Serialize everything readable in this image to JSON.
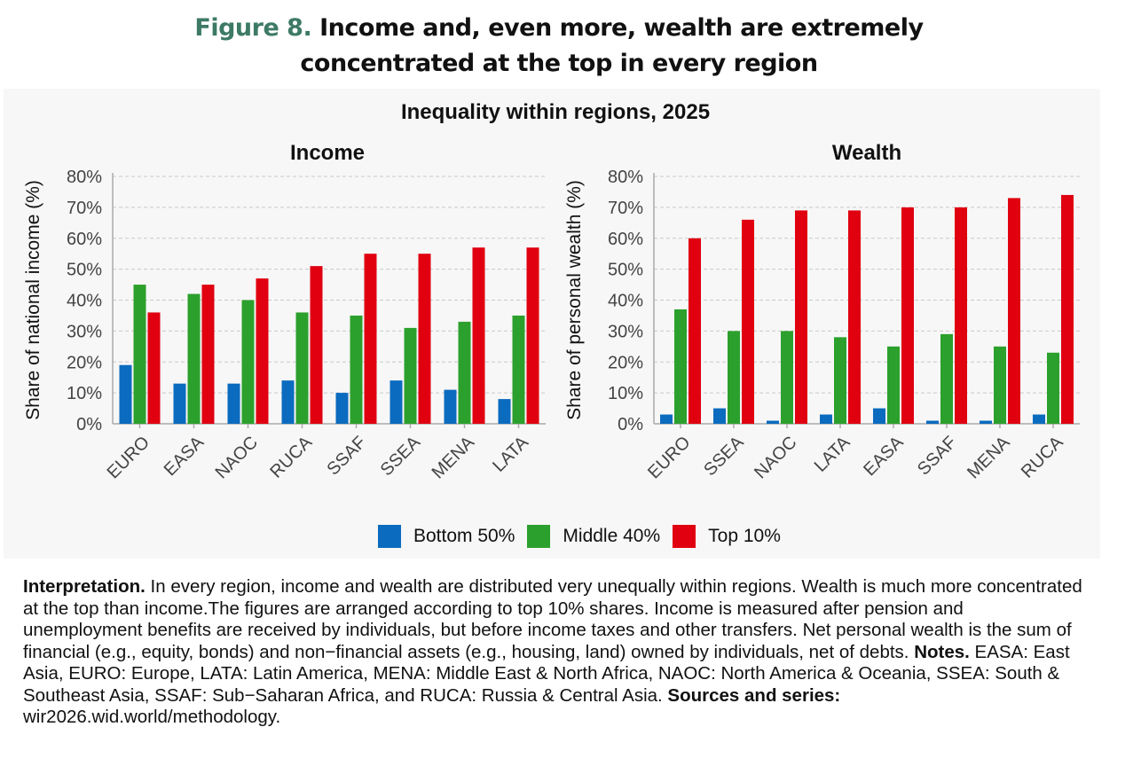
{
  "figure": {
    "number": "Figure 8.",
    "title_line1": "Income and, even more, wealth are extremely",
    "title_line2": "concentrated at the top in every region"
  },
  "panel_title": "Inequality within regions, 2025",
  "colors": {
    "bottom50": "#0b6bbf",
    "middle40": "#2ca02c",
    "top10": "#e00010",
    "heading_accent": "#3d7a65"
  },
  "legend": [
    {
      "label": "Bottom 50%",
      "color": "#0b6bbf"
    },
    {
      "label": "Middle 40%",
      "color": "#2ca02c"
    },
    {
      "label": "Top 10%",
      "color": "#e00010"
    }
  ],
  "chart_data": [
    {
      "type": "bar",
      "title": "Income",
      "ylabel": "Share of national income (%)",
      "xlabel": "",
      "ylim": [
        0,
        80
      ],
      "yticks": [
        "0%",
        "10%",
        "20%",
        "30%",
        "40%",
        "50%",
        "60%",
        "70%",
        "80%"
      ],
      "grid": true,
      "categories": [
        "EURO",
        "EASA",
        "NAOC",
        "RUCA",
        "SSAF",
        "SSEA",
        "MENA",
        "LATA"
      ],
      "series": [
        {
          "name": "Bottom 50%",
          "values": [
            19,
            13,
            13,
            14,
            10,
            14,
            11,
            8
          ]
        },
        {
          "name": "Middle 40%",
          "values": [
            45,
            42,
            40,
            36,
            35,
            31,
            33,
            35
          ]
        },
        {
          "name": "Top 10%",
          "values": [
            36,
            45,
            47,
            51,
            55,
            55,
            57,
            57
          ]
        }
      ]
    },
    {
      "type": "bar",
      "title": "Wealth",
      "ylabel": "Share of personal wealth (%)",
      "xlabel": "",
      "ylim": [
        0,
        80
      ],
      "yticks": [
        "0%",
        "10%",
        "20%",
        "30%",
        "40%",
        "50%",
        "60%",
        "70%",
        "80%"
      ],
      "grid": true,
      "categories": [
        "EURO",
        "SSEA",
        "NAOC",
        "LATA",
        "EASA",
        "SSAF",
        "MENA",
        "RUCA"
      ],
      "series": [
        {
          "name": "Bottom 50%",
          "values": [
            3,
            5,
            1,
            3,
            5,
            1,
            1,
            3
          ]
        },
        {
          "name": "Middle 40%",
          "values": [
            37,
            30,
            30,
            28,
            25,
            29,
            25,
            23
          ]
        },
        {
          "name": "Top 10%",
          "values": [
            60,
            66,
            69,
            69,
            70,
            70,
            73,
            74
          ]
        }
      ]
    }
  ],
  "notes": {
    "interp_label": "Interpretation.",
    "interp_text": " In every region, income and wealth are distributed very unequally within regions. Wealth is much more concentrated at the top than income.The figures are arranged according to top 10% shares. Income is measured after pension and unemployment benefits are received by individuals, but before income taxes and other transfers. Net personal wealth is the sum of financial (e.g., equity, bonds) and non−financial assets (e.g., housing, land) owned by individuals, net of debts. ",
    "notes_label": "Notes.",
    "notes_text": " EASA: East Asia, EURO: Europe, LATA: Latin America, MENA: Middle East & North Africa, NAOC: North America & Oceania, SSEA: South & Southeast Asia, SSAF: Sub−Saharan Africa, and RUCA: Russia & Central Asia. ",
    "sources_label": "Sources and series:",
    "sources_text": " wir2026.wid.world/methodology."
  }
}
